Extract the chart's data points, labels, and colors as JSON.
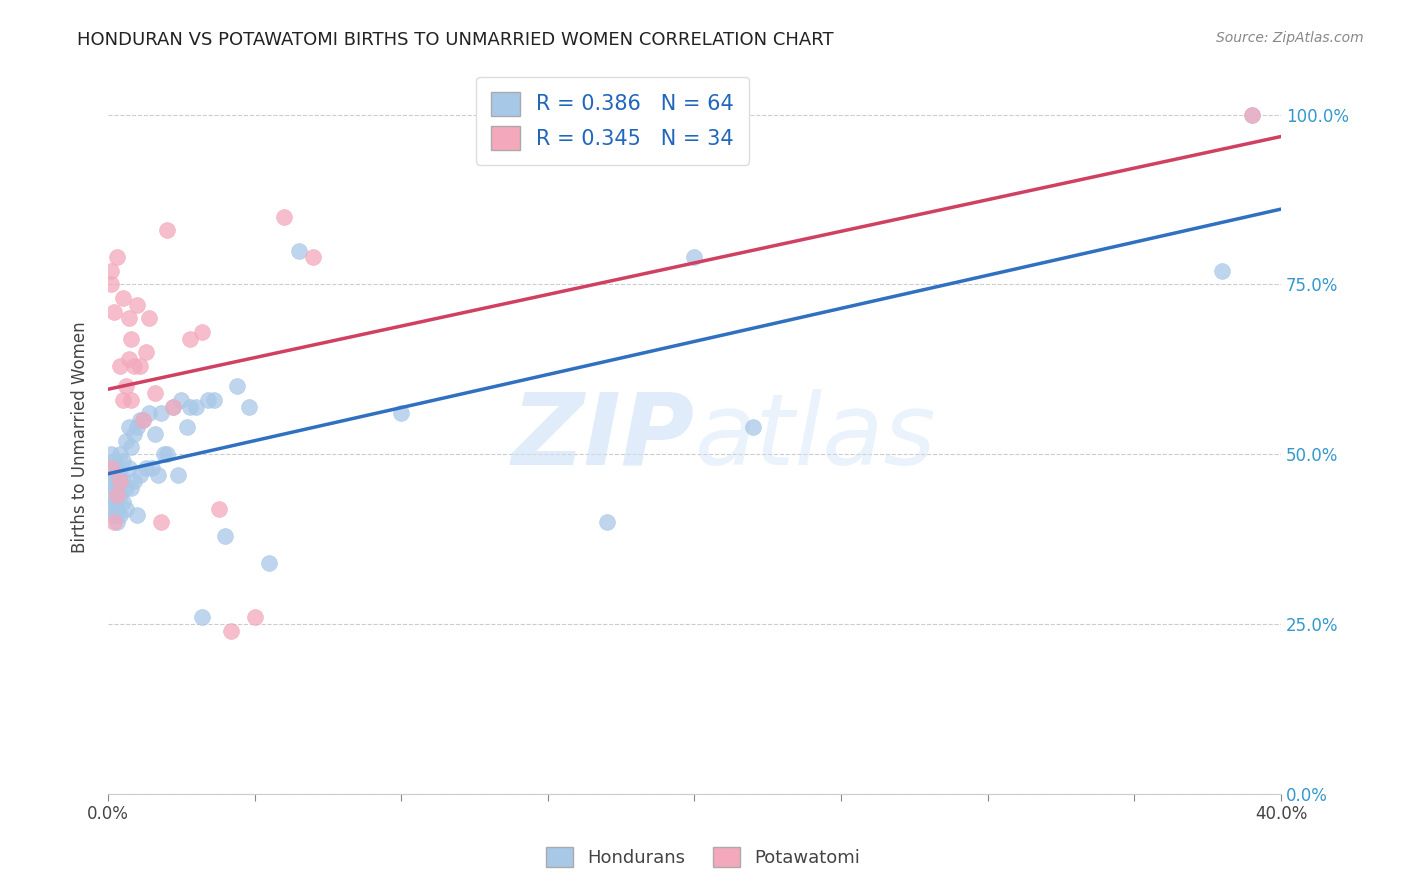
{
  "title": "HONDURAN VS POTAWATOMI BIRTHS TO UNMARRIED WOMEN CORRELATION CHART",
  "source": "Source: ZipAtlas.com",
  "ylabel_label": "Births to Unmarried Women",
  "xmin": 0.0,
  "xmax": 0.4,
  "ymin": 0.0,
  "ymax": 1.05,
  "honduran_R": 0.386,
  "honduran_N": 64,
  "potawatomi_R": 0.345,
  "potawatomi_N": 34,
  "honduran_color": "#a8c8e8",
  "potawatomi_color": "#f4a8bc",
  "honduran_line_color": "#3070c0",
  "potawatomi_line_color": "#d04060",
  "dash_color": "#aaaaaa",
  "watermark_color": "#cce0f5",
  "honduran_x": [
    0.001,
    0.001,
    0.001,
    0.001,
    0.001,
    0.002,
    0.002,
    0.002,
    0.002,
    0.002,
    0.003,
    0.003,
    0.003,
    0.003,
    0.003,
    0.004,
    0.004,
    0.004,
    0.004,
    0.005,
    0.005,
    0.005,
    0.006,
    0.006,
    0.006,
    0.007,
    0.007,
    0.008,
    0.008,
    0.009,
    0.009,
    0.01,
    0.01,
    0.011,
    0.011,
    0.012,
    0.013,
    0.014,
    0.015,
    0.016,
    0.017,
    0.018,
    0.019,
    0.02,
    0.022,
    0.024,
    0.025,
    0.027,
    0.028,
    0.03,
    0.032,
    0.034,
    0.036,
    0.04,
    0.044,
    0.048,
    0.055,
    0.065,
    0.1,
    0.17,
    0.2,
    0.22,
    0.38,
    0.39
  ],
  "honduran_y": [
    0.42,
    0.44,
    0.46,
    0.48,
    0.5,
    0.41,
    0.43,
    0.45,
    0.47,
    0.49,
    0.4,
    0.42,
    0.44,
    0.46,
    0.48,
    0.41,
    0.44,
    0.47,
    0.5,
    0.43,
    0.46,
    0.49,
    0.42,
    0.45,
    0.52,
    0.48,
    0.54,
    0.45,
    0.51,
    0.46,
    0.53,
    0.41,
    0.54,
    0.47,
    0.55,
    0.55,
    0.48,
    0.56,
    0.48,
    0.53,
    0.47,
    0.56,
    0.5,
    0.5,
    0.57,
    0.47,
    0.58,
    0.54,
    0.57,
    0.57,
    0.26,
    0.58,
    0.58,
    0.38,
    0.6,
    0.57,
    0.34,
    0.8,
    0.56,
    0.4,
    0.79,
    0.54,
    0.77,
    1.0
  ],
  "potawatomi_x": [
    0.001,
    0.001,
    0.001,
    0.002,
    0.002,
    0.003,
    0.003,
    0.004,
    0.004,
    0.005,
    0.005,
    0.006,
    0.007,
    0.007,
    0.008,
    0.008,
    0.009,
    0.01,
    0.011,
    0.012,
    0.013,
    0.014,
    0.016,
    0.018,
    0.02,
    0.022,
    0.028,
    0.032,
    0.038,
    0.042,
    0.05,
    0.06,
    0.07,
    0.39
  ],
  "potawatomi_y": [
    0.48,
    0.75,
    0.77,
    0.4,
    0.71,
    0.44,
    0.79,
    0.46,
    0.63,
    0.58,
    0.73,
    0.6,
    0.64,
    0.7,
    0.58,
    0.67,
    0.63,
    0.72,
    0.63,
    0.55,
    0.65,
    0.7,
    0.59,
    0.4,
    0.83,
    0.57,
    0.67,
    0.68,
    0.42,
    0.24,
    0.26,
    0.85,
    0.79,
    1.0
  ],
  "ytick_vals": [
    0.0,
    0.25,
    0.5,
    0.75,
    1.0
  ],
  "xtick_vals": [
    0.0,
    0.05,
    0.1,
    0.15,
    0.2,
    0.25,
    0.3,
    0.35,
    0.4
  ],
  "title_fontsize": 13,
  "axis_fontsize": 12,
  "ylabel_fontsize": 12
}
